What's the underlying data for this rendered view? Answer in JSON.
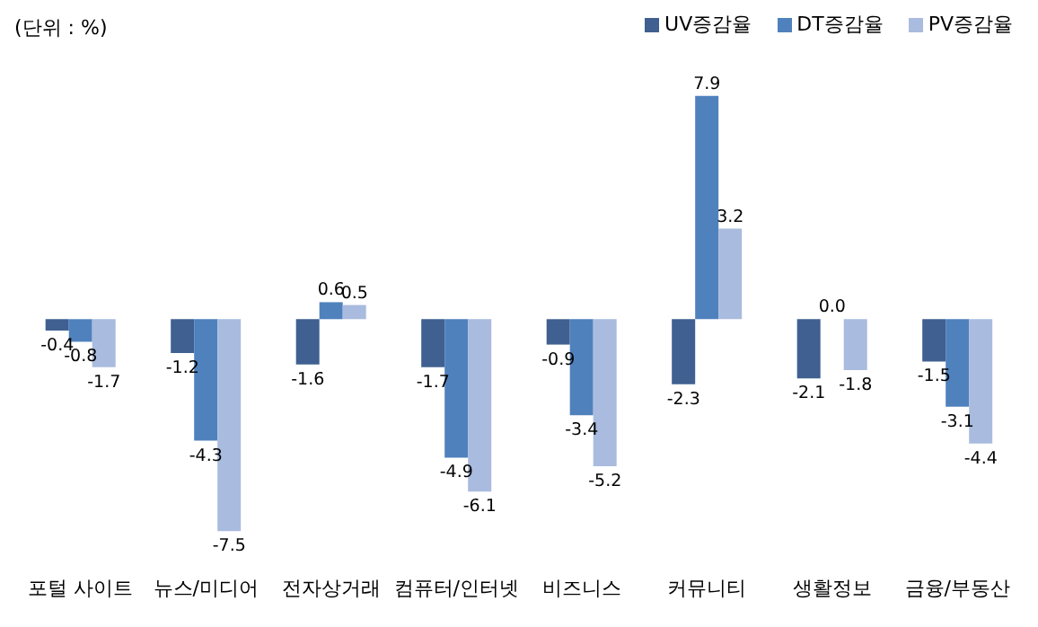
{
  "chart_data": {
    "type": "bar",
    "categories": [
      "포털 사이트",
      "뉴스/미디어",
      "전자상거래",
      "컴퓨터/인터넷",
      "비즈니스",
      "커뮤니티",
      "생활정보",
      "금융/부동산"
    ],
    "series": [
      {
        "name": "UV증감율",
        "color": "#3f6090",
        "values": [
          -0.4,
          -1.2,
          -1.6,
          -1.7,
          -0.9,
          -2.3,
          -2.1,
          -1.5
        ],
        "value_labels": [
          "-0.4",
          "-1.2",
          "-1.6",
          "-1.7",
          "-0.9",
          "-2.3",
          "-2.1",
          "-1.5"
        ]
      },
      {
        "name": "DT증감율",
        "color": "#4f81bd",
        "values": [
          -0.8,
          -4.3,
          0.6,
          -4.9,
          -3.4,
          7.9,
          0.0,
          -3.1
        ],
        "value_labels": [
          "-0.8",
          "-4.3",
          "0.6",
          "-4.9",
          "-3.4",
          "7.9",
          "0.0",
          "-3.1"
        ]
      },
      {
        "name": "PV증감율",
        "color": "#a9bbde",
        "values": [
          -1.7,
          -7.5,
          0.5,
          -6.1,
          -5.2,
          3.2,
          -1.8,
          -4.4
        ],
        "value_labels": [
          "-1.7",
          "-7.5",
          "0.5",
          "-6.1",
          "-5.2",
          "3.2",
          "-1.8",
          "-4.4"
        ]
      }
    ],
    "relative": false,
    "annotations": [
      "(단위 : %)"
    ],
    "legend": "top right",
    "grid": false
  }
}
